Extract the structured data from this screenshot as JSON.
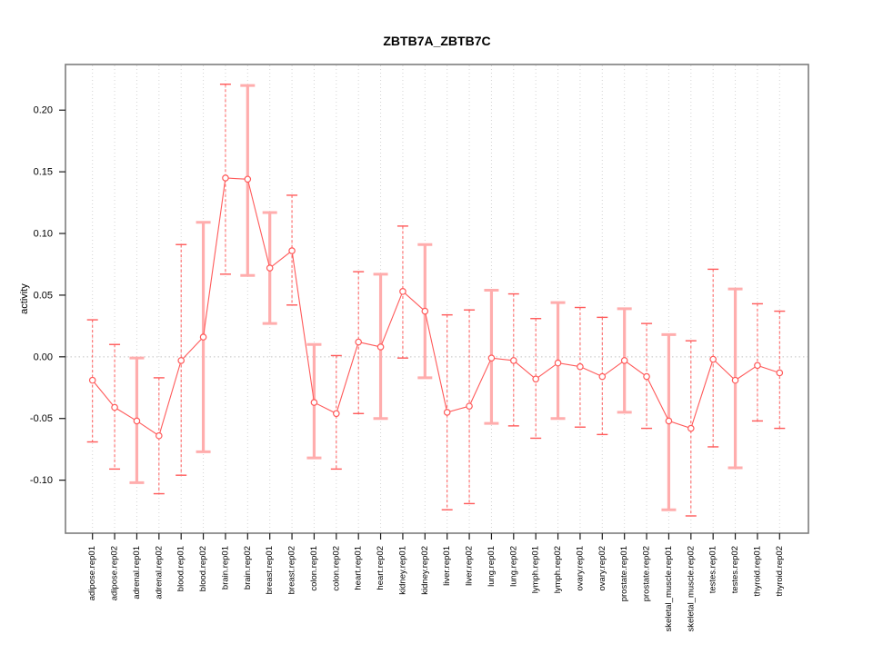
{
  "window": {
    "background_color": "#ffffff"
  },
  "chart_data": {
    "type": "line",
    "title": "ZBTB7A_ZBTB7C",
    "xlabel": "",
    "ylabel": "activity",
    "legend_position": "none",
    "grid": "vertical dotted gridline at every category; dotted horizontal reference line at y=0",
    "ylim": [
      -0.143,
      0.237
    ],
    "yticks": [
      0.2,
      0.15,
      0.1,
      0.05,
      0.0,
      -0.05,
      -0.1
    ],
    "ytick_labels": [
      "0.20",
      "0.15",
      "0.10",
      "0.05",
      "0.00",
      "-0.05",
      "-0.10"
    ],
    "marker": "open-circle",
    "categories": [
      "adipose.rep01",
      "adipose.rep02",
      "adrenal.rep01",
      "adrenal.rep02",
      "blood.rep01",
      "blood.rep02",
      "brain.rep01",
      "brain.rep02",
      "breast.rep01",
      "breast.rep02",
      "colon.rep01",
      "colon.rep02",
      "heart.rep01",
      "heart.rep02",
      "kidney.rep01",
      "kidney.rep02",
      "liver.rep01",
      "liver.rep02",
      "lung.rep01",
      "lung.rep02",
      "lymph.rep01",
      "lymph.rep02",
      "ovary.rep01",
      "ovary.rep02",
      "prostate.rep01",
      "prostate.rep02",
      "skeletal_muscle.rep01",
      "skeletal_muscle.rep02",
      "testes.rep01",
      "testes.rep02",
      "thyroid.rep01",
      "thyroid.rep02"
    ],
    "series": [
      {
        "name": "activity",
        "values": [
          -0.019,
          -0.041,
          -0.052,
          -0.064,
          -0.003,
          0.016,
          0.145,
          0.144,
          0.072,
          0.086,
          -0.037,
          -0.046,
          0.012,
          0.008,
          0.053,
          0.037,
          -0.045,
          -0.04,
          -0.001,
          -0.003,
          -0.018,
          -0.005,
          -0.008,
          -0.016,
          -0.003,
          -0.016,
          -0.052,
          -0.058,
          -0.002,
          -0.019,
          -0.007,
          -0.013
        ],
        "error_low": [
          -0.069,
          -0.091,
          -0.102,
          -0.111,
          -0.096,
          -0.077,
          0.067,
          0.066,
          0.027,
          0.042,
          -0.082,
          -0.091,
          -0.046,
          -0.05,
          -0.001,
          -0.017,
          -0.124,
          -0.119,
          -0.054,
          -0.056,
          -0.066,
          -0.05,
          -0.057,
          -0.063,
          -0.045,
          -0.058,
          -0.124,
          -0.129,
          -0.073,
          -0.09,
          -0.052,
          -0.058
        ],
        "error_high": [
          0.03,
          0.01,
          -0.001,
          -0.017,
          0.091,
          0.109,
          0.221,
          0.22,
          0.117,
          0.131,
          0.01,
          0.001,
          0.069,
          0.067,
          0.106,
          0.091,
          0.034,
          0.038,
          0.054,
          0.051,
          0.031,
          0.044,
          0.04,
          0.032,
          0.039,
          0.027,
          0.018,
          0.013,
          0.071,
          0.055,
          0.043,
          0.037
        ],
        "bar_styles": [
          "dashed",
          "dashed",
          "thick",
          "dashed",
          "dashed",
          "thick",
          "dashed",
          "thick",
          "thick",
          "dashed",
          "thick",
          "dashed",
          "dashed",
          "thick",
          "dashed",
          "thick",
          "dashed",
          "dashed",
          "thick",
          "dashed",
          "dashed",
          "thick",
          "dashed",
          "dashed",
          "thick",
          "dashed",
          "thick",
          "dashed",
          "dashed",
          "thick",
          "dashed",
          "dashed"
        ]
      }
    ],
    "colors": {
      "series_red": "#ff5a5a",
      "thick_bar_pink": "#ffadad",
      "marker_fill": "#ffffff",
      "gridline_gray": "#d4d4d4",
      "zero_line_gray": "#c4c4c4",
      "plot_border_gray": "#7d7d7d",
      "tick_black": "#1a1a1a"
    }
  }
}
